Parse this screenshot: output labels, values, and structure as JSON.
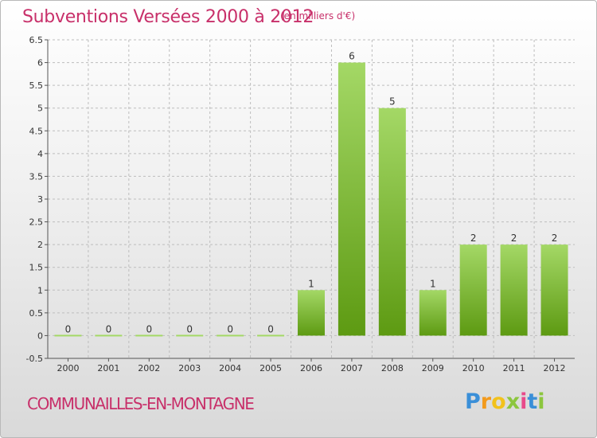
{
  "title": "Subventions Versées 2000 à 2012",
  "subtitle": "(en milliers d'€)",
  "commune": "COMMUNAILLES-EN-MONTAGNE",
  "logo": {
    "letters": [
      "P",
      "r",
      "o",
      "x",
      "i",
      "t",
      "i"
    ],
    "colors": [
      "#3a8fd8",
      "#f29a1c",
      "#f2c21c",
      "#8cc63e",
      "#e84a8a",
      "#3a8fd8",
      "#8cc63e"
    ]
  },
  "colors": {
    "bar_light": "#a4d866",
    "bar_dark": "#5d9a12",
    "text_accent": "#c8306a",
    "grid": "#bdbdbd"
  },
  "chart_data": {
    "type": "bar",
    "title": "Subventions Versées 2000 à 2012",
    "categories": [
      "2000",
      "2001",
      "2002",
      "2003",
      "2004",
      "2005",
      "2006",
      "2007",
      "2008",
      "2009",
      "2010",
      "2011",
      "2012"
    ],
    "values": [
      0,
      0,
      0,
      0,
      0,
      0,
      1,
      6,
      5,
      1,
      2,
      2,
      2
    ],
    "value_labels": [
      "0",
      "0",
      "0",
      "0",
      "0",
      "0",
      "1",
      "6",
      "5",
      "1",
      "2",
      "2",
      "2"
    ],
    "yticks": [
      "-0.5",
      "0",
      "0.5",
      "1",
      "1.5",
      "2",
      "2.5",
      "3",
      "3.5",
      "4",
      "4.5",
      "5",
      "5.5",
      "6",
      "6.5"
    ],
    "ylim": [
      -0.5,
      6.5
    ],
    "grid": true
  }
}
